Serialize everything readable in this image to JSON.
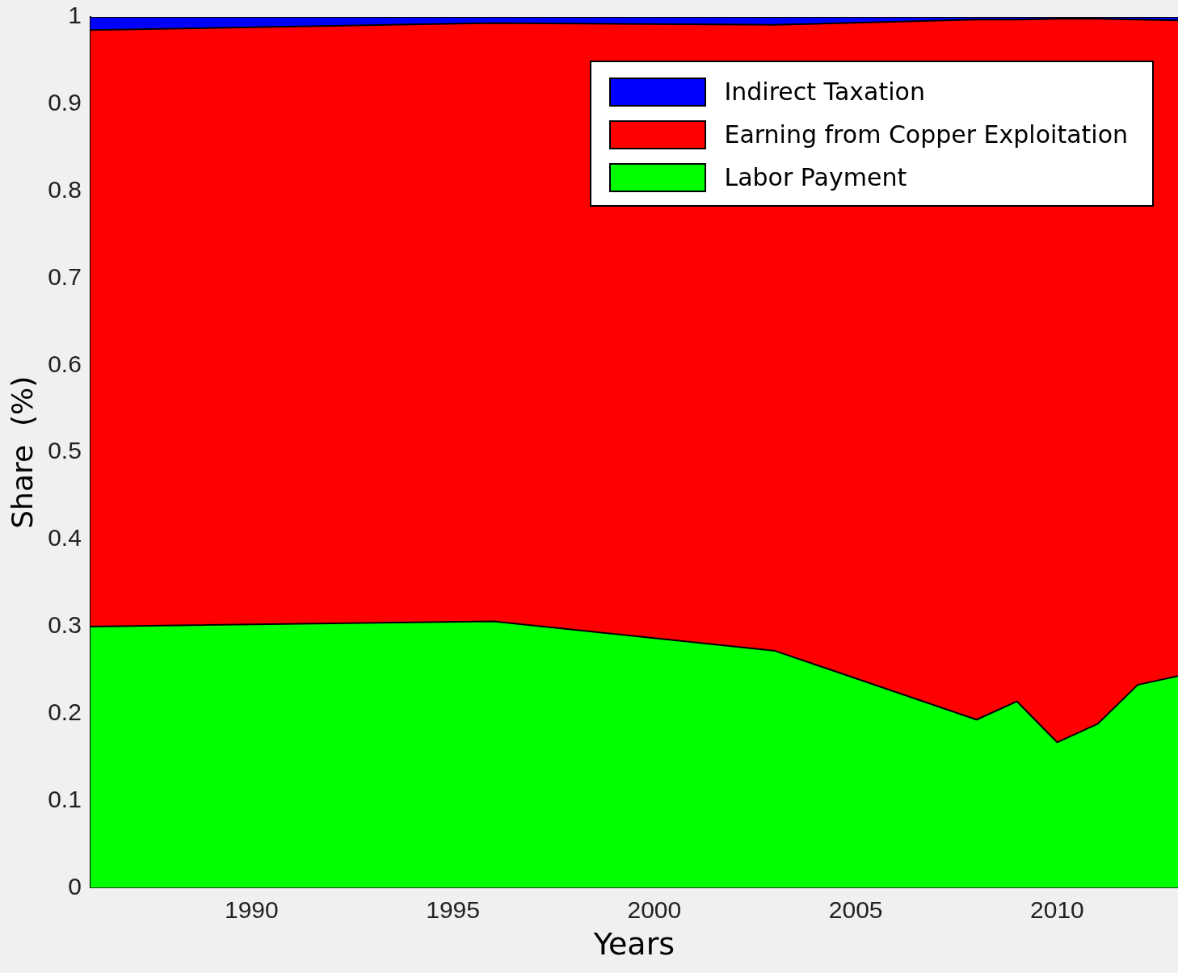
{
  "chart_data": {
    "type": "area",
    "stacked": true,
    "xlabel": "Years",
    "ylabel": "Share  (%)",
    "x": [
      1986,
      1996,
      2003,
      2008,
      2009,
      2010,
      2011,
      2012,
      2013
    ],
    "series": [
      {
        "name": "Labor Payment",
        "color": "#00ff00",
        "values": [
          0.3,
          0.306,
          0.272,
          0.193,
          0.214,
          0.167,
          0.188,
          0.233,
          0.243
        ]
      },
      {
        "name": "Earning from Copper Exploitation",
        "color": "#ff0000",
        "values": [
          0.685,
          0.687,
          0.719,
          0.804,
          0.783,
          0.831,
          0.81,
          0.764,
          0.753
        ]
      },
      {
        "name": "Indirect Taxation",
        "color": "#0000ff",
        "values": [
          0.015,
          0.007,
          0.009,
          0.003,
          0.003,
          0.002,
          0.002,
          0.003,
          0.004
        ]
      }
    ],
    "xlim": [
      1986,
      2013
    ],
    "xticks": [
      1990,
      1995,
      2000,
      2005,
      2010
    ],
    "ylim": [
      0,
      1
    ],
    "yticks": [
      0,
      0.1,
      0.2,
      0.3,
      0.4,
      0.5,
      0.6,
      0.7,
      0.8,
      0.9,
      1
    ],
    "grid": false,
    "legend": "top right"
  }
}
